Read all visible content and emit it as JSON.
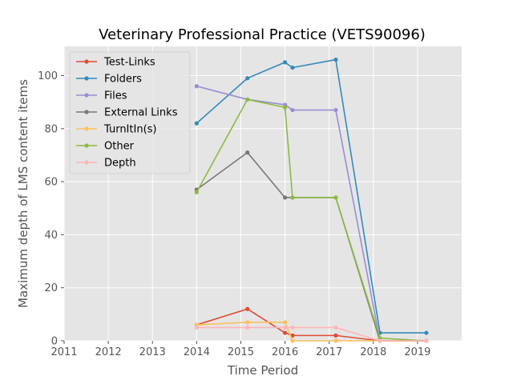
{
  "chart_data": {
    "type": "line",
    "title": "Veterinary Professional Practice (VETS90096)",
    "xlabel": "Time Period",
    "ylabel": "Maximum depth of LMS content items",
    "xlim": [
      2011,
      2020
    ],
    "ylim": [
      0,
      111
    ],
    "xticks": [
      "2011",
      "2012",
      "2013",
      "2014",
      "2015",
      "2016",
      "2017",
      "2018",
      "2019"
    ],
    "yticks": [
      "0",
      "20",
      "40",
      "60",
      "80",
      "100"
    ],
    "grid": true,
    "legend_position": "top-left",
    "x": [
      2014.0,
      2015.15,
      2016.0,
      2016.17,
      2017.15,
      2018.15,
      2019.2
    ],
    "series": [
      {
        "name": "Test-Links",
        "color": "#E24A33",
        "values": [
          6,
          12,
          3,
          2,
          2,
          0,
          0
        ]
      },
      {
        "name": "Folders",
        "color": "#348ABD",
        "values": [
          82,
          99,
          105,
          103,
          106,
          3,
          3
        ]
      },
      {
        "name": "Files",
        "color": "#988ED5",
        "values": [
          96,
          91,
          89,
          87,
          87,
          0,
          0
        ]
      },
      {
        "name": "External Links",
        "color": "#777777",
        "values": [
          57,
          71,
          54,
          54,
          54,
          0,
          0
        ]
      },
      {
        "name": "TurnItIn(s)",
        "color": "#FBC15E",
        "values": [
          6,
          7,
          7,
          0,
          0,
          0,
          0
        ]
      },
      {
        "name": "Other",
        "color": "#8EBA42",
        "values": [
          56,
          91,
          88,
          54,
          54,
          1,
          0
        ]
      },
      {
        "name": "Depth",
        "color": "#FFB5B8",
        "values": [
          5,
          5,
          5,
          5,
          5,
          0,
          0
        ]
      }
    ]
  }
}
